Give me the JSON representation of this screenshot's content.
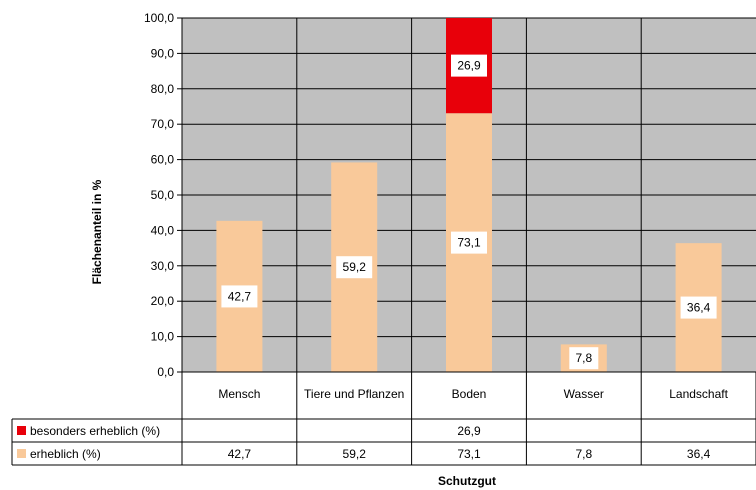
{
  "chart_data": {
    "type": "bar",
    "stacked": true,
    "categories": [
      "Mensch",
      "Tiere und Pflanzen",
      "Boden",
      "Wasser",
      "Landschaft"
    ],
    "series": [
      {
        "name": "erheblich (%)",
        "color": "#F9C99A",
        "values": [
          42.7,
          59.2,
          73.1,
          7.8,
          36.4
        ],
        "labels": [
          "42,7",
          "59,2",
          "73,1",
          "7,8",
          "36,4"
        ]
      },
      {
        "name": "besonders erheblich (%)",
        "color": "#E8000A",
        "values": [
          null,
          null,
          26.9,
          null,
          null
        ],
        "labels": [
          "",
          "",
          "26,9",
          "",
          ""
        ]
      }
    ],
    "xlabel": "Schutzgut",
    "ylabel": "Flächenanteil in %",
    "ylim": [
      0,
      100
    ],
    "yticks": [
      "0,0",
      "10,0",
      "20,0",
      "30,0",
      "40,0",
      "50,0",
      "60,0",
      "70,0",
      "80,0",
      "90,0",
      "100,0"
    ],
    "plot_background": "#C0C0C0",
    "grid": true,
    "data_table": true
  }
}
